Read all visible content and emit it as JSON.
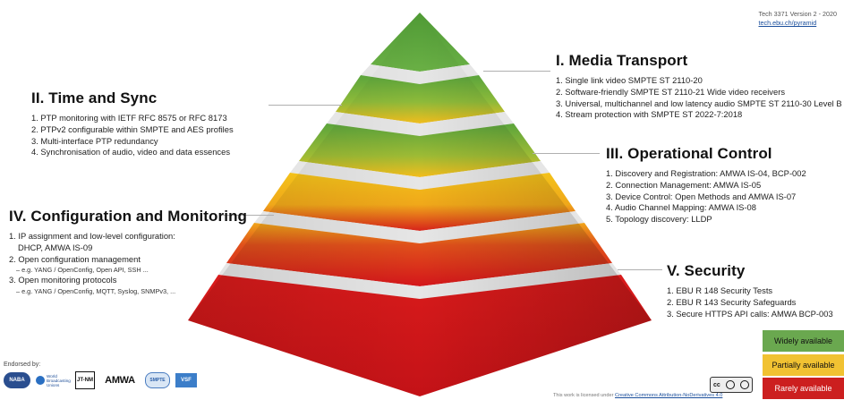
{
  "header": {
    "version": "Tech 3371 Version 2 - 2020",
    "link": "tech.ebu.ch/pyramid"
  },
  "sections": {
    "media_transport": {
      "title": "I. Media Transport",
      "items": [
        "1. Single link video SMPTE ST 2110-20",
        "2. Software-friendly SMPTE ST 2110-21 Wide video receivers",
        "3. Universal, multichannel and low latency audio SMPTE ST 2110-30 Level B",
        "4. Stream protection with SMPTE ST 2022-7:2018"
      ]
    },
    "time_sync": {
      "title": "II. Time and Sync",
      "items": [
        "1. PTP monitoring with IETF RFC 8575 or RFC 8173",
        "2. PTPv2 configurable within SMPTE and AES profiles",
        "3. Multi-interface PTP redundancy",
        "4. Synchronisation of audio, video and data essences"
      ]
    },
    "operational_control": {
      "title": "III. Operational Control",
      "items": [
        "1. Discovery and Registration: AMWA IS-04, BCP-002",
        "2. Connection Management: AMWA IS-05",
        "3. Device Control: Open Methods and AMWA IS-07",
        "4. Audio Channel Mapping: AMWA IS-08",
        "5. Topology discovery: LLDP"
      ]
    },
    "config_monitoring": {
      "title": "IV. Configuration and Monitoring",
      "item1_line1": "1. IP assignment and low-level configuration:",
      "item1_line2": "DHCP, AMWA IS-09",
      "item2": "2. Open configuration management",
      "item2_sub": "– e.g. YANG / OpenConfig, Open API, SSH ...",
      "item3": "3. Open monitoring protocols",
      "item3_sub": "– e.g. YANG / OpenConfig, MQTT, Syslog, SNMPv3, ..."
    },
    "security": {
      "title": "V. Security",
      "items": [
        "1. EBU R 148 Security Tests",
        "2. EBU R 143 Security Safeguards",
        "3. Secure HTTPS API calls: AMWA BCP-003"
      ]
    }
  },
  "legend": {
    "widely": "Widely available",
    "partially": "Partially available",
    "rarely": "Rarely available"
  },
  "colors": {
    "green": "#5a9e3a",
    "yellow": "#f3bd1c",
    "red": "#d4161b",
    "grey_band": "#e6e6e6",
    "legend_green": "#6aa84f",
    "legend_yellow": "#f1c232",
    "legend_red": "#cc1f1f"
  },
  "footer": {
    "endorsed_by": "Endorsed by:",
    "logos": [
      "NABA",
      "World Broadcasting Unions",
      "JT-NM",
      "AMWA",
      "SMPTE",
      "VSF"
    ],
    "license_prefix": "This work is licensed under ",
    "license_link": "Creative Commons Attribution-NoDerivatives 4.0",
    "cc_badge": "cc"
  }
}
